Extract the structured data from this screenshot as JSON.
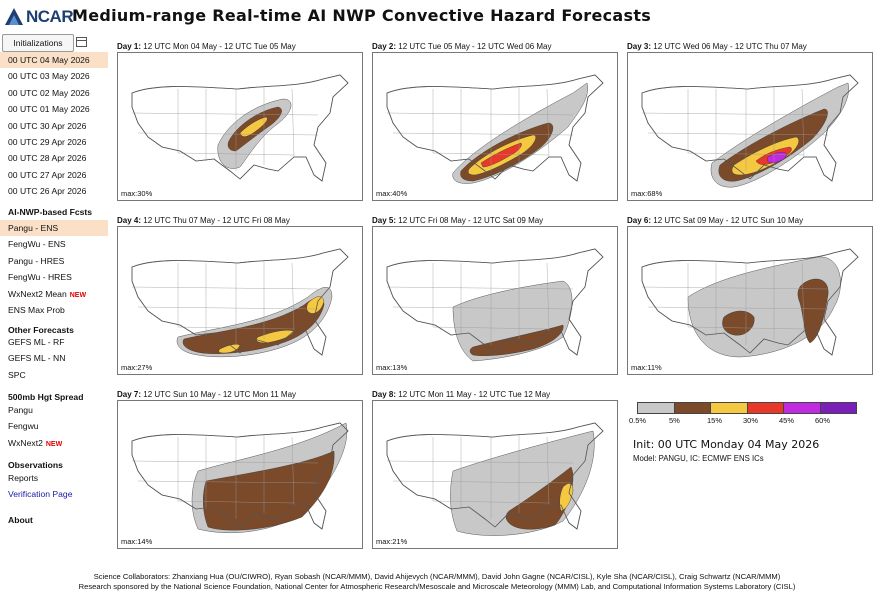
{
  "header": {
    "logo_text": "NCAR",
    "title": "Medium-range Real-time AI NWP Convective Hazard Forecasts"
  },
  "sidebar": {
    "init_button": "Initializations",
    "inits": [
      {
        "label": "00 UTC 04 May 2026",
        "active": true
      },
      {
        "label": "00 UTC 03 May 2026",
        "active": false
      },
      {
        "label": "00 UTC 02 May 2026",
        "active": false
      },
      {
        "label": "00 UTC 01 May 2026",
        "active": false
      },
      {
        "label": "00 UTC 30 Apr 2026",
        "active": false
      },
      {
        "label": "00 UTC 29 Apr 2026",
        "active": false
      },
      {
        "label": "00 UTC 28 Apr 2026",
        "active": false
      },
      {
        "label": "00 UTC 27 Apr 2026",
        "active": false
      },
      {
        "label": "00 UTC 26 Apr 2026",
        "active": false
      }
    ],
    "ai_head": "AI-NWP-based Fcsts",
    "ai_items": [
      {
        "label": "Pangu - ENS",
        "active": true,
        "new": ""
      },
      {
        "label": "FengWu - ENS",
        "active": false,
        "new": ""
      },
      {
        "label": "Pangu - HRES",
        "active": false,
        "new": ""
      },
      {
        "label": "FengWu - HRES",
        "active": false,
        "new": ""
      },
      {
        "label": "WxNext2 Mean",
        "active": false,
        "new": "NEW"
      },
      {
        "label": "ENS Max Prob",
        "active": false,
        "new": ""
      }
    ],
    "other_head": "Other Forecasts",
    "other_items": [
      {
        "label": "GEFS ML - RF",
        "new": ""
      },
      {
        "label": "GEFS ML - NN",
        "new": ""
      },
      {
        "label": "SPC",
        "new": ""
      }
    ],
    "spread_head": "500mb Hgt Spread",
    "spread_items": [
      {
        "label": "Pangu",
        "new": ""
      },
      {
        "label": "Fengwu",
        "new": ""
      },
      {
        "label": "WxNext2",
        "new": "NEW"
      }
    ],
    "obs_head": "Observations",
    "obs_items": [
      {
        "label": "Reports",
        "link": false
      },
      {
        "label": "Verification Page",
        "link": true
      }
    ],
    "about": "About"
  },
  "panels": [
    {
      "day": "Day 1:",
      "range": "12 UTC Mon 04 May - 12 UTC Tue 05 May",
      "max": "max:30%"
    },
    {
      "day": "Day 2:",
      "range": "12 UTC Tue 05 May - 12 UTC Wed 06 May",
      "max": "max:40%"
    },
    {
      "day": "Day 3:",
      "range": "12 UTC Wed 06 May - 12 UTC Thu 07 May",
      "max": "max:68%"
    },
    {
      "day": "Day 4:",
      "range": "12 UTC Thu 07 May - 12 UTC Fri 08 May",
      "max": "max:27%"
    },
    {
      "day": "Day 5:",
      "range": "12 UTC Fri 08 May - 12 UTC Sat 09 May",
      "max": "max:13%"
    },
    {
      "day": "Day 6:",
      "range": "12 UTC Sat 09 May - 12 UTC Sun 10 May",
      "max": "max:11%"
    },
    {
      "day": "Day 7:",
      "range": "12 UTC Sun 10 May - 12 UTC Mon 11 May",
      "max": "max:14%"
    },
    {
      "day": "Day 8:",
      "range": "12 UTC Mon 11 May - 12 UTC Tue 12 May",
      "max": "max:21%"
    }
  ],
  "legend": {
    "colors": [
      "#c8c8c8",
      "#7a4a2a",
      "#f5c842",
      "#e8382a",
      "#c02ae0",
      "#7a1fb8"
    ],
    "labels": [
      "0.5%",
      "5%",
      "15%",
      "30%",
      "45%",
      "60%"
    ]
  },
  "info": {
    "init": "Init: 00 UTC Monday 04 May 2026",
    "model": "Model: PANGU, IC: ECMWF ENS ICs"
  },
  "footer": {
    "line1": "Science Collaborators: Zhanxiang Hua (OU/CIWRO), Ryan Sobash (NCAR/MMM), David Ahijevych (NCAR/MMM), David John Gagne (NCAR/CISL), Kyle Sha (NCAR/CISL), Craig Schwartz (NCAR/MMM)",
    "line2": "Research sponsored by the National Science Foundation, National Center for Atmospheric Research/Mesoscale and Microscale Meteorology (MMM) Lab, and Computational Information Systems Laboratory (CISL)"
  }
}
